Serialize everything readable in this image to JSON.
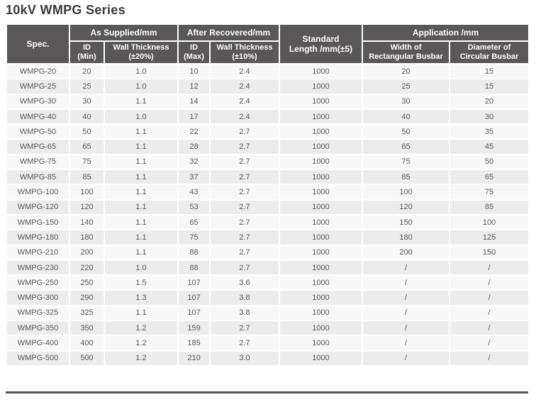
{
  "title": "10kV WMPG Series",
  "table": {
    "header": {
      "spec": "Spec.",
      "groups": {
        "as_supplied": "As Supplied/mm",
        "after_recovered": "After Recovered/mm",
        "application": "Application /mm"
      },
      "standard_length": {
        "line1": "Standard",
        "line2": "Length /mm(±5)"
      },
      "sub": {
        "id_min": {
          "line1": "ID",
          "line2": "(Min)"
        },
        "wall_thickness_supplied": {
          "line1": "Wall Thickness",
          "line2": "(±20%)"
        },
        "id_max": {
          "line1": "ID",
          "line2": "(Max)"
        },
        "wall_thickness_recovered": {
          "line1": "Wall Thickness",
          "line2": "(±10%)"
        },
        "busbar_width": {
          "line1": "Width of",
          "line2": "Rectangular Busbar"
        },
        "busbar_diameter": {
          "line1": "Diameter of",
          "line2": "Circular Busbar"
        }
      }
    },
    "columns_order": [
      "spec",
      "id_min",
      "wall_supplied",
      "id_max",
      "wall_recovered",
      "standard_length",
      "busbar_width",
      "busbar_diameter"
    ],
    "rows": [
      {
        "spec": "WMPG-20",
        "id_min": "20",
        "wall_supplied": "1.0",
        "id_max": "10",
        "wall_recovered": "2.4",
        "standard_length": "1000",
        "busbar_width": "20",
        "busbar_diameter": "15"
      },
      {
        "spec": "WMPG-25",
        "id_min": "25",
        "wall_supplied": "1.0",
        "id_max": "12",
        "wall_recovered": "2.4",
        "standard_length": "1000",
        "busbar_width": "25",
        "busbar_diameter": "15"
      },
      {
        "spec": "WMPG-30",
        "id_min": "30",
        "wall_supplied": "1.1",
        "id_max": "14",
        "wall_recovered": "2.4",
        "standard_length": "1000",
        "busbar_width": "30",
        "busbar_diameter": "20"
      },
      {
        "spec": "WMPG-40",
        "id_min": "40",
        "wall_supplied": "1.0",
        "id_max": "17",
        "wall_recovered": "2.4",
        "standard_length": "1000",
        "busbar_width": "40",
        "busbar_diameter": "30"
      },
      {
        "spec": "WMPG-50",
        "id_min": "50",
        "wall_supplied": "1.1",
        "id_max": "22",
        "wall_recovered": "2.7",
        "standard_length": "1000",
        "busbar_width": "50",
        "busbar_diameter": "35"
      },
      {
        "spec": "WMPG-65",
        "id_min": "65",
        "wall_supplied": "1.1",
        "id_max": "28",
        "wall_recovered": "2.7",
        "standard_length": "1000",
        "busbar_width": "65",
        "busbar_diameter": "45"
      },
      {
        "spec": "WMPG-75",
        "id_min": "75",
        "wall_supplied": "1.1",
        "id_max": "32",
        "wall_recovered": "2.7",
        "standard_length": "1000",
        "busbar_width": "75",
        "busbar_diameter": "50"
      },
      {
        "spec": "WMPG-85",
        "id_min": "85",
        "wall_supplied": "1.1",
        "id_max": "37",
        "wall_recovered": "2.7",
        "standard_length": "1000",
        "busbar_width": "85",
        "busbar_diameter": "65"
      },
      {
        "spec": "WMPG-100",
        "id_min": "100",
        "wall_supplied": "1.1",
        "id_max": "43",
        "wall_recovered": "2.7",
        "standard_length": "1000",
        "busbar_width": "100",
        "busbar_diameter": "75"
      },
      {
        "spec": "WMPG-120",
        "id_min": "120",
        "wall_supplied": "1.1",
        "id_max": "53",
        "wall_recovered": "2.7",
        "standard_length": "1000",
        "busbar_width": "120",
        "busbar_diameter": "85"
      },
      {
        "spec": "WMPG-150",
        "id_min": "140",
        "wall_supplied": "1.1",
        "id_max": "65",
        "wall_recovered": "2.7",
        "standard_length": "1000",
        "busbar_width": "150",
        "busbar_diameter": "100"
      },
      {
        "spec": "WMPG-180",
        "id_min": "180",
        "wall_supplied": "1.1",
        "id_max": "75",
        "wall_recovered": "2.7",
        "standard_length": "1000",
        "busbar_width": "180",
        "busbar_diameter": "125"
      },
      {
        "spec": "WMPG-210",
        "id_min": "200",
        "wall_supplied": "1.1",
        "id_max": "88",
        "wall_recovered": "2.7",
        "standard_length": "1000",
        "busbar_width": "200",
        "busbar_diameter": "150"
      },
      {
        "spec": "WMPG-230",
        "id_min": "220",
        "wall_supplied": "1.0",
        "id_max": "88",
        "wall_recovered": "2.7",
        "standard_length": "1000",
        "busbar_width": "/",
        "busbar_diameter": "/"
      },
      {
        "spec": "WMPG-250",
        "id_min": "250",
        "wall_supplied": "1.5",
        "id_max": "107",
        "wall_recovered": "3.6",
        "standard_length": "1000",
        "busbar_width": "/",
        "busbar_diameter": "/"
      },
      {
        "spec": "WMPG-300",
        "id_min": "290",
        "wall_supplied": "1.3",
        "id_max": "107",
        "wall_recovered": "3.8",
        "standard_length": "1000",
        "busbar_width": "/",
        "busbar_diameter": "/"
      },
      {
        "spec": "WMPG-325",
        "id_min": "325",
        "wall_supplied": "1.1",
        "id_max": "107",
        "wall_recovered": "3.8",
        "standard_length": "1000",
        "busbar_width": "/",
        "busbar_diameter": "/"
      },
      {
        "spec": "WMPG-350",
        "id_min": "350",
        "wall_supplied": "1.2",
        "id_max": "159",
        "wall_recovered": "2.7",
        "standard_length": "1000",
        "busbar_width": "/",
        "busbar_diameter": "/"
      },
      {
        "spec": "WMPG-400",
        "id_min": "400",
        "wall_supplied": "1.2",
        "id_max": "185",
        "wall_recovered": "2.7",
        "standard_length": "1000",
        "busbar_width": "/",
        "busbar_diameter": "/"
      },
      {
        "spec": "WMPG-500",
        "id_min": "500",
        "wall_supplied": "1.2",
        "id_max": "210",
        "wall_recovered": "3.0",
        "standard_length": "1000",
        "busbar_width": "/",
        "busbar_diameter": "/"
      }
    ]
  },
  "colors": {
    "header_bg": "#595757",
    "header_text": "#ffffff",
    "row_light": "#f8f8f8",
    "row_dark": "#ececec",
    "cell_border": "#ffffff",
    "body_text": "#5a5757",
    "title_text": "#3e3a39",
    "bottom_rule": "#565353"
  }
}
